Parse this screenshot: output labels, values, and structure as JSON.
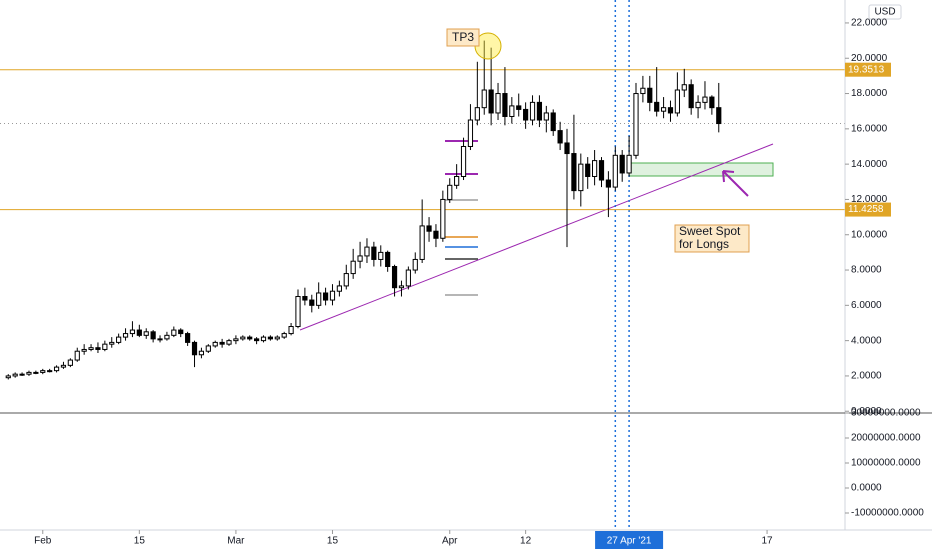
{
  "chart_data": {
    "type": "candlestick",
    "currency": "USD",
    "x": [
      27,
      28,
      29,
      30,
      31,
      32,
      33,
      34,
      35,
      36,
      37,
      38,
      39,
      40,
      41,
      42,
      43,
      44,
      45,
      46,
      47,
      48,
      49,
      50,
      51,
      52,
      53,
      54,
      55,
      56,
      57,
      58,
      59,
      60,
      61,
      62,
      63,
      64,
      65,
      66,
      67,
      68,
      69,
      70,
      71,
      72,
      73,
      74,
      75,
      76,
      77,
      78,
      79,
      80,
      81,
      82,
      83,
      84,
      85,
      86,
      87,
      88,
      89,
      90,
      91,
      92,
      93,
      94,
      95,
      96,
      97,
      98,
      99,
      100,
      101,
      102,
      103,
      104,
      105,
      106,
      107,
      108,
      109,
      110,
      111,
      112,
      113,
      114,
      115,
      116,
      117,
      118,
      119,
      120,
      121,
      122,
      123,
      124,
      125,
      126,
      127,
      128,
      129,
      130
    ],
    "open": [
      1.9,
      2.0,
      2.1,
      2.1,
      2.2,
      2.2,
      2.3,
      2.3,
      2.5,
      2.6,
      2.9,
      3.4,
      3.5,
      3.6,
      3.5,
      3.8,
      3.9,
      4.2,
      4.4,
      4.6,
      4.3,
      4.5,
      4.1,
      4.1,
      4.3,
      4.6,
      4.4,
      3.9,
      3.2,
      3.4,
      3.7,
      3.9,
      3.8,
      4.0,
      4.1,
      4.2,
      4.1,
      4.0,
      4.2,
      4.1,
      4.2,
      4.4,
      4.8,
      6.5,
      6.3,
      6.0,
      6.7,
      6.3,
      6.8,
      7.1,
      7.8,
      8.5,
      8.8,
      9.3,
      8.6,
      9.0,
      8.2,
      7.0,
      7.1,
      8.0,
      8.6,
      10.5,
      10.2,
      9.8,
      12.0,
      12.8,
      13.3,
      15.0,
      16.5,
      17.2,
      18.2,
      16.9,
      18.0,
      16.7,
      17.3,
      17.1,
      16.5,
      17.5,
      16.5,
      16.9,
      15.9,
      15.2,
      14.6,
      12.5,
      14.0,
      13.3,
      14.2,
      13.1,
      12.7,
      14.5,
      13.5,
      14.5,
      18.0,
      18.3,
      17.5,
      17.0,
      17.2,
      16.9,
      18.2,
      18.5,
      17.2,
      17.5,
      17.8,
      17.2
    ],
    "high": [
      2.1,
      2.2,
      2.2,
      2.3,
      2.3,
      2.4,
      2.4,
      2.6,
      2.8,
      3.0,
      3.6,
      3.8,
      3.8,
      3.9,
      4.0,
      4.2,
      4.4,
      4.7,
      5.1,
      4.9,
      4.7,
      4.6,
      4.3,
      4.5,
      4.8,
      4.7,
      4.5,
      4.0,
      3.6,
      3.8,
      4.0,
      4.1,
      4.1,
      4.3,
      4.3,
      4.3,
      4.2,
      4.3,
      4.3,
      4.3,
      4.5,
      5.0,
      6.9,
      7.0,
      6.6,
      7.3,
      7.0,
      7.2,
      7.4,
      8.3,
      9.2,
      9.6,
      9.8,
      9.6,
      9.4,
      9.1,
      8.3,
      7.4,
      8.2,
      9.0,
      12.0,
      11.0,
      10.6,
      12.5,
      13.2,
      14.0,
      15.5,
      17.4,
      19.8,
      21.0,
      20.6,
      18.6,
      19.5,
      17.8,
      18.0,
      17.5,
      17.9,
      17.9,
      17.3,
      17.1,
      16.4,
      16.0,
      16.8,
      14.6,
      14.4,
      14.8,
      14.4,
      13.6,
      15.0,
      14.8,
      15.6,
      18.6,
      19.0,
      19.0,
      19.5,
      17.8,
      17.6,
      19.2,
      19.4,
      18.8,
      17.9,
      18.7,
      17.9,
      18.6
    ],
    "low": [
      1.8,
      1.9,
      2.0,
      2.0,
      2.1,
      2.1,
      2.2,
      2.2,
      2.4,
      2.5,
      2.8,
      3.2,
      3.4,
      3.3,
      3.4,
      3.6,
      3.8,
      4.0,
      4.2,
      4.2,
      4.1,
      3.9,
      3.9,
      4.0,
      4.2,
      4.2,
      3.7,
      2.5,
      3.0,
      3.3,
      3.6,
      3.6,
      3.7,
      3.8,
      4.0,
      4.0,
      3.8,
      3.9,
      4.0,
      4.0,
      4.1,
      4.3,
      4.7,
      6.0,
      5.6,
      5.8,
      6.0,
      6.0,
      6.5,
      6.9,
      7.5,
      8.1,
      8.4,
      8.2,
      8.2,
      7.9,
      6.5,
      6.5,
      6.9,
      7.8,
      8.4,
      9.6,
      9.3,
      9.6,
      11.8,
      12.6,
      13.1,
      14.8,
      16.2,
      16.8,
      16.2,
      16.5,
      16.2,
      16.3,
      16.7,
      16.0,
      16.2,
      16.1,
      15.8,
      15.6,
      14.8,
      9.3,
      12.0,
      11.6,
      12.6,
      12.8,
      12.7,
      11.0,
      12.5,
      13.0,
      13.3,
      14.3,
      17.5,
      17.0,
      16.7,
      16.6,
      16.4,
      16.7,
      17.8,
      16.8,
      16.6,
      17.1,
      16.8,
      15.8
    ],
    "close": [
      2.0,
      2.1,
      2.1,
      2.2,
      2.2,
      2.3,
      2.3,
      2.5,
      2.6,
      2.9,
      3.4,
      3.5,
      3.6,
      3.5,
      3.8,
      3.9,
      4.2,
      4.4,
      4.6,
      4.3,
      4.5,
      4.1,
      4.1,
      4.3,
      4.6,
      4.4,
      3.9,
      3.2,
      3.4,
      3.7,
      3.9,
      3.8,
      4.0,
      4.1,
      4.2,
      4.1,
      4.0,
      4.2,
      4.1,
      4.2,
      4.4,
      4.8,
      6.5,
      6.3,
      6.0,
      6.7,
      6.3,
      6.8,
      7.1,
      7.8,
      8.5,
      8.8,
      9.3,
      8.6,
      9.0,
      8.2,
      7.0,
      7.1,
      8.0,
      8.6,
      10.5,
      10.2,
      9.8,
      12.0,
      12.8,
      13.3,
      15.0,
      16.5,
      17.2,
      18.2,
      16.9,
      18.0,
      16.7,
      17.3,
      17.1,
      16.5,
      17.5,
      16.5,
      16.9,
      15.9,
      15.2,
      14.6,
      12.5,
      14.0,
      13.3,
      14.2,
      13.1,
      12.7,
      14.5,
      13.5,
      14.5,
      18.0,
      18.3,
      17.5,
      17.0,
      17.2,
      16.9,
      18.2,
      18.5,
      17.2,
      17.5,
      17.8,
      17.2,
      16.3
    ],
    "xlim": [
      25.8,
      148.3
    ],
    "ylim": [
      -0.1,
      23.3
    ],
    "xticks": [
      {
        "value": 32,
        "label": "Feb"
      },
      {
        "value": 46,
        "label": "15"
      },
      {
        "value": 60,
        "label": "Mar"
      },
      {
        "value": 74,
        "label": "15"
      },
      {
        "value": 91,
        "label": "Apr"
      },
      {
        "value": 102,
        "label": "12"
      },
      {
        "value": 137,
        "label": "17"
      }
    ],
    "yticks": [
      {
        "value": 0,
        "label": "0.0000"
      },
      {
        "value": 2,
        "label": "2.0000"
      },
      {
        "value": 4,
        "label": "4.0000"
      },
      {
        "value": 6,
        "label": "6.0000"
      },
      {
        "value": 8,
        "label": "8.0000"
      },
      {
        "value": 10,
        "label": "10.0000"
      },
      {
        "value": 12,
        "label": "12.0000"
      },
      {
        "value": 14,
        "label": "14.0000"
      },
      {
        "value": 16,
        "label": "16.0000"
      },
      {
        "value": 18,
        "label": "18.0000"
      },
      {
        "value": 20,
        "label": "20.0000"
      },
      {
        "value": 22,
        "label": "22.0000"
      }
    ],
    "horizontal_lines": [
      {
        "value": 19.3513,
        "label": "19.3513",
        "color": "#e0a526"
      },
      {
        "value": 11.4258,
        "label": "11.4258",
        "color": "#e0a526"
      }
    ],
    "vertical_lines": [
      115,
      117
    ],
    "cursor": {
      "value": 117,
      "label": "27 Apr '21"
    },
    "annotations": [
      "TP3",
      "Sweet Spot",
      "for Longs"
    ],
    "volume_pane": {
      "ylim": [
        -16800000,
        30000000
      ],
      "yticks": [
        {
          "value": 30000000,
          "label": "30000000.0000"
        },
        {
          "value": 20000000,
          "label": "20000000.0000"
        },
        {
          "value": 10000000,
          "label": "10000000.0000"
        },
        {
          "value": 0,
          "label": "0.0000"
        },
        {
          "value": -10000000,
          "label": "-10000000.0000"
        }
      ]
    }
  }
}
